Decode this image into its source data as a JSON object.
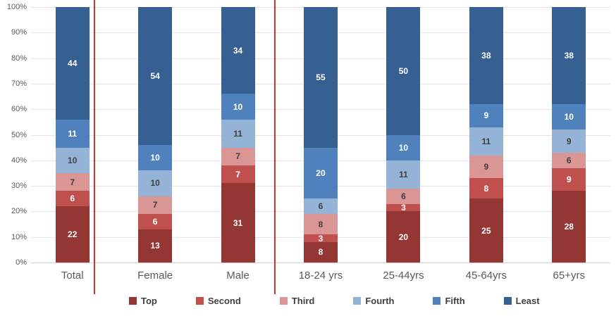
{
  "chart_data": {
    "type": "bar",
    "subtype": "100-percent-stacked-column",
    "title": "",
    "xlabel": "",
    "ylabel": "",
    "categories": [
      "Total",
      "Female",
      "Male",
      "18-24 yrs",
      "25-44yrs",
      "45-64yrs",
      "65+yrs"
    ],
    "series": [
      {
        "name": "Top",
        "color": "#943634",
        "label_color": "#ffffff",
        "values": [
          22,
          13,
          31,
          8,
          20,
          25,
          28
        ]
      },
      {
        "name": "Second",
        "color": "#C0504D",
        "label_color": "#ffffff",
        "values": [
          6,
          6,
          7,
          3,
          3,
          8,
          9
        ]
      },
      {
        "name": "Third",
        "color": "#D99694",
        "label_color": "#3f3f3f",
        "values": [
          7,
          7,
          7,
          8,
          6,
          9,
          6
        ]
      },
      {
        "name": "Fourth",
        "color": "#95B3D7",
        "label_color": "#3f3f3f",
        "values": [
          10,
          10,
          11,
          6,
          11,
          11,
          9
        ]
      },
      {
        "name": "Fifth",
        "color": "#4F81BD",
        "label_color": "#ffffff",
        "values": [
          11,
          10,
          10,
          20,
          10,
          9,
          10
        ]
      },
      {
        "name": "Least",
        "color": "#376092",
        "label_color": "#ffffff",
        "values": [
          44,
          54,
          34,
          55,
          50,
          38,
          38
        ]
      }
    ],
    "y_axis": {
      "min": 0,
      "max": 100,
      "ticks": [
        "0%",
        "10%",
        "20%",
        "30%",
        "40%",
        "50%",
        "60%",
        "70%",
        "80%",
        "90%",
        "100%"
      ],
      "grid": true
    },
    "legend": {
      "position": "bottom",
      "entries": [
        "Top",
        "Second",
        "Third",
        "Fourth",
        "Fifth",
        "Least"
      ]
    },
    "annotations": {
      "divider_color": "#cc3232",
      "dividers_after_categories": [
        "Total",
        "Male"
      ]
    }
  }
}
